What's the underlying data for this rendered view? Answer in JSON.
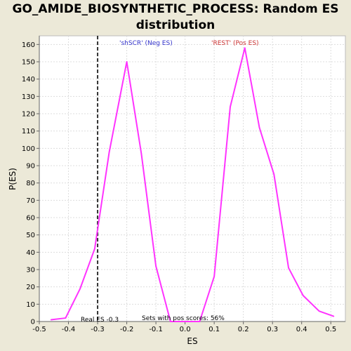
{
  "chart_data": {
    "type": "line",
    "title_lines": [
      "GO_AMIDE_BIOSYNTHETIC_PROCESS: Random ES",
      "distribution"
    ],
    "xlabel": "ES",
    "ylabel": "P(ES)",
    "xlim": [
      -0.5,
      0.55
    ],
    "ylim": [
      0,
      165
    ],
    "x_ticks": [
      "-0.5",
      "-0.4",
      "-0.3",
      "-0.2",
      "-0.1",
      "0.0",
      "0.1",
      "0.2",
      "0.3",
      "0.4",
      "0.5"
    ],
    "x_tick_values": [
      -0.5,
      -0.4,
      -0.3,
      -0.2,
      -0.1,
      0.0,
      0.1,
      0.2,
      0.3,
      0.4,
      0.5
    ],
    "y_ticks": [
      "0",
      "10",
      "20",
      "30",
      "40",
      "50",
      "60",
      "70",
      "80",
      "90",
      "100",
      "110",
      "120",
      "130",
      "140",
      "150",
      "160"
    ],
    "y_tick_values": [
      0,
      10,
      20,
      30,
      40,
      50,
      60,
      70,
      80,
      90,
      100,
      110,
      120,
      130,
      140,
      150,
      160
    ],
    "grid": true,
    "series": [
      {
        "color": "#ff33ff",
        "x": [
          -0.46,
          -0.41,
          -0.36,
          -0.31,
          -0.26,
          -0.2,
          -0.15,
          -0.1,
          -0.05,
          0.0,
          0.05,
          0.1,
          0.155,
          0.205,
          0.255,
          0.305,
          0.355,
          0.405,
          0.46,
          0.51
        ],
        "y": [
          1,
          2,
          19,
          42,
          98,
          150,
          97,
          32,
          0,
          0,
          0,
          26,
          124,
          158,
          112,
          85,
          31,
          15,
          6,
          3
        ]
      }
    ],
    "real_es": {
      "x": -0.3,
      "label": "Real ES -0.3"
    },
    "annotations": [
      {
        "text": "'shSCR' (Neg ES)",
        "color": "#3333cc"
      },
      {
        "text": "'REST' (Pos ES)",
        "color": "#cc3333"
      },
      {
        "text": "Sets with pos scores: 56%",
        "color": "#000000"
      }
    ]
  }
}
